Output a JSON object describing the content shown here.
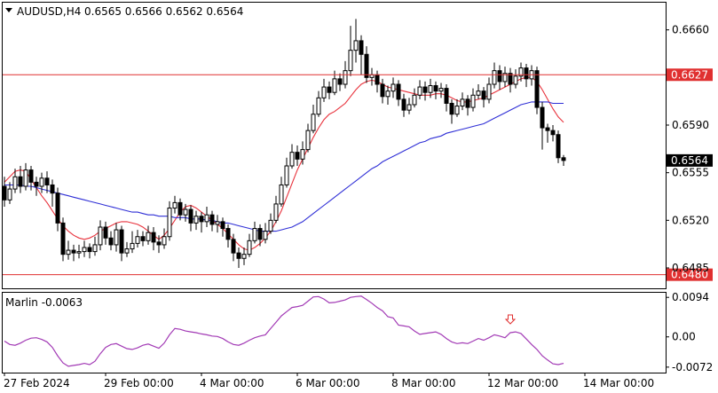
{
  "header": {
    "symbol_timeframe": "AUDUSD,H4",
    "ohlc": "0.6565 0.6566 0.6562 0.6564"
  },
  "colors": {
    "bull_candle": "#ffffff",
    "bear_candle": "#000000",
    "fast_ma": "#e8323c",
    "slow_ma": "#2f2fd6",
    "horizontal_level": "#e03030",
    "current_price_box": "#000000",
    "marlin_line": "#a23ab5",
    "signal_arrow": "#e03030"
  },
  "chart_data": [
    {
      "type": "candlestick",
      "symbol": "AUDUSD",
      "timeframe": "H4",
      "ylim": [
        0.647,
        0.668
      ],
      "price_ticks": [
        "0.6660",
        "0.6590",
        "0.6555",
        "0.6520",
        "0.6485"
      ],
      "x_labels": [
        "27 Feb 2024",
        "29 Feb 00:00",
        "4 Mar 00:00",
        "6 Mar 00:00",
        "8 Mar 00:00",
        "12 Mar 00:00",
        "14 Mar 00:00"
      ],
      "x_label_bar_index": [
        0,
        19,
        37,
        55,
        73,
        91,
        109
      ],
      "horizontal_levels": [
        "0.6627",
        "0.6480"
      ],
      "current_price": "0.6564",
      "candles": [
        [
          0.6545,
          0.6535,
          0.6552,
          0.653
        ],
        [
          0.6535,
          0.6543,
          0.6548,
          0.6532
        ],
        [
          0.6543,
          0.6552,
          0.6558,
          0.654
        ],
        [
          0.6552,
          0.6545,
          0.656,
          0.654
        ],
        [
          0.6545,
          0.6557,
          0.6562,
          0.6542
        ],
        [
          0.6557,
          0.6548,
          0.656,
          0.6542
        ],
        [
          0.6548,
          0.6545,
          0.6552,
          0.6538
        ],
        [
          0.6545,
          0.6551,
          0.6555,
          0.654
        ],
        [
          0.6551,
          0.6546,
          0.6556,
          0.654
        ],
        [
          0.6546,
          0.654,
          0.655,
          0.653
        ],
        [
          0.654,
          0.6518,
          0.6544,
          0.6512
        ],
        [
          0.6518,
          0.6495,
          0.6522,
          0.649
        ],
        [
          0.6495,
          0.6498,
          0.6505,
          0.6491
        ],
        [
          0.6498,
          0.6496,
          0.6502,
          0.649
        ],
        [
          0.6496,
          0.6497,
          0.6502,
          0.6492
        ],
        [
          0.6497,
          0.65,
          0.6505,
          0.6493
        ],
        [
          0.65,
          0.6497,
          0.6503,
          0.6492
        ],
        [
          0.6497,
          0.6502,
          0.6508,
          0.6494
        ],
        [
          0.6502,
          0.6515,
          0.652,
          0.6498
        ],
        [
          0.6515,
          0.6507,
          0.6519,
          0.6502
        ],
        [
          0.6507,
          0.6502,
          0.6512,
          0.6498
        ],
        [
          0.6502,
          0.6513,
          0.6518,
          0.6497
        ],
        [
          0.6513,
          0.6496,
          0.6516,
          0.649
        ],
        [
          0.6496,
          0.6499,
          0.6504,
          0.6493
        ],
        [
          0.6499,
          0.6503,
          0.6512,
          0.6496
        ],
        [
          0.6503,
          0.6508,
          0.6513,
          0.65
        ],
        [
          0.6508,
          0.6505,
          0.6512,
          0.6501
        ],
        [
          0.6505,
          0.6511,
          0.6516,
          0.6502
        ],
        [
          0.6511,
          0.6504,
          0.6515,
          0.6498
        ],
        [
          0.6504,
          0.6502,
          0.6509,
          0.6496
        ],
        [
          0.6502,
          0.6508,
          0.6514,
          0.6499
        ],
        [
          0.6508,
          0.6529,
          0.6534,
          0.6505
        ],
        [
          0.6529,
          0.6533,
          0.6538,
          0.6525
        ],
        [
          0.6533,
          0.6524,
          0.6536,
          0.652
        ],
        [
          0.6524,
          0.6528,
          0.6532,
          0.6519
        ],
        [
          0.6528,
          0.6518,
          0.6531,
          0.6512
        ],
        [
          0.6518,
          0.6523,
          0.6527,
          0.6513
        ],
        [
          0.6523,
          0.6519,
          0.6526,
          0.6511
        ],
        [
          0.6519,
          0.6524,
          0.653,
          0.6515
        ],
        [
          0.6524,
          0.6517,
          0.6527,
          0.6512
        ],
        [
          0.6517,
          0.6519,
          0.6524,
          0.6511
        ],
        [
          0.6519,
          0.6514,
          0.6522,
          0.6508
        ],
        [
          0.6514,
          0.6506,
          0.6517,
          0.65
        ],
        [
          0.6506,
          0.6496,
          0.651,
          0.649
        ],
        [
          0.6496,
          0.6492,
          0.65,
          0.6485
        ],
        [
          0.6492,
          0.6495,
          0.65,
          0.6487
        ],
        [
          0.6495,
          0.6505,
          0.651,
          0.6493
        ],
        [
          0.6505,
          0.6514,
          0.6519,
          0.6503
        ],
        [
          0.6514,
          0.6506,
          0.6517,
          0.6501
        ],
        [
          0.6506,
          0.6512,
          0.6518,
          0.6503
        ],
        [
          0.6512,
          0.652,
          0.6525,
          0.651
        ],
        [
          0.652,
          0.6532,
          0.6538,
          0.6518
        ],
        [
          0.6532,
          0.6546,
          0.6552,
          0.653
        ],
        [
          0.6546,
          0.656,
          0.6566,
          0.6544
        ],
        [
          0.656,
          0.657,
          0.6576,
          0.6558
        ],
        [
          0.657,
          0.6565,
          0.6575,
          0.656
        ],
        [
          0.6565,
          0.6572,
          0.6578,
          0.6561
        ],
        [
          0.6572,
          0.6586,
          0.6591,
          0.657
        ],
        [
          0.6586,
          0.6598,
          0.6605,
          0.6584
        ],
        [
          0.6598,
          0.661,
          0.6615,
          0.6596
        ],
        [
          0.661,
          0.6618,
          0.6624,
          0.6607
        ],
        [
          0.6618,
          0.6614,
          0.6622,
          0.6609
        ],
        [
          0.6614,
          0.6624,
          0.663,
          0.6612
        ],
        [
          0.6624,
          0.662,
          0.6628,
          0.6615
        ],
        [
          0.662,
          0.663,
          0.6637,
          0.6617
        ],
        [
          0.663,
          0.6645,
          0.6663,
          0.6626
        ],
        [
          0.6645,
          0.6652,
          0.6668,
          0.6636
        ],
        [
          0.6652,
          0.6642,
          0.6656,
          0.6627
        ],
        [
          0.6642,
          0.6625,
          0.6648,
          0.6621
        ],
        [
          0.6625,
          0.6627,
          0.6632,
          0.6619
        ],
        [
          0.6627,
          0.662,
          0.663,
          0.6614
        ],
        [
          0.662,
          0.6611,
          0.6624,
          0.6606
        ],
        [
          0.6611,
          0.6615,
          0.6619,
          0.6605
        ],
        [
          0.6615,
          0.662,
          0.6625,
          0.661
        ],
        [
          0.662,
          0.6609,
          0.6623,
          0.6604
        ],
        [
          0.6609,
          0.6601,
          0.6613,
          0.6596
        ],
        [
          0.6601,
          0.6605,
          0.661,
          0.6598
        ],
        [
          0.6605,
          0.6612,
          0.6617,
          0.6603
        ],
        [
          0.6612,
          0.6618,
          0.6623,
          0.6609
        ],
        [
          0.6618,
          0.6614,
          0.6622,
          0.6608
        ],
        [
          0.6614,
          0.6619,
          0.6624,
          0.661
        ],
        [
          0.6619,
          0.6615,
          0.6622,
          0.6609
        ],
        [
          0.6615,
          0.6617,
          0.6621,
          0.661
        ],
        [
          0.6617,
          0.6606,
          0.662,
          0.66
        ],
        [
          0.6606,
          0.6598,
          0.6609,
          0.6591
        ],
        [
          0.6598,
          0.6604,
          0.6609,
          0.6596
        ],
        [
          0.6604,
          0.6609,
          0.6614,
          0.6601
        ],
        [
          0.6609,
          0.6603,
          0.6612,
          0.6597
        ],
        [
          0.6603,
          0.6612,
          0.6617,
          0.66
        ],
        [
          0.6612,
          0.6615,
          0.662,
          0.6609
        ],
        [
          0.6615,
          0.6609,
          0.6618,
          0.6603
        ],
        [
          0.6609,
          0.662,
          0.6625,
          0.6606
        ],
        [
          0.662,
          0.663,
          0.6636,
          0.6617
        ],
        [
          0.663,
          0.6622,
          0.6634,
          0.6616
        ],
        [
          0.6622,
          0.6628,
          0.6633,
          0.6618
        ],
        [
          0.6628,
          0.662,
          0.6632,
          0.6614
        ],
        [
          0.662,
          0.6626,
          0.6631,
          0.6617
        ],
        [
          0.6626,
          0.6632,
          0.6636,
          0.6622
        ],
        [
          0.6632,
          0.6624,
          0.6635,
          0.6618
        ],
        [
          0.6624,
          0.663,
          0.6634,
          0.6619
        ],
        [
          0.663,
          0.6603,
          0.6633,
          0.6598
        ],
        [
          0.6603,
          0.6588,
          0.6607,
          0.6572
        ],
        [
          0.6588,
          0.6586,
          0.6591,
          0.6577
        ],
        [
          0.6586,
          0.6583,
          0.659,
          0.6578
        ],
        [
          0.6583,
          0.6566,
          0.6586,
          0.6562
        ],
        [
          0.6566,
          0.6564,
          0.6568,
          0.656
        ]
      ],
      "moving_averages": [
        {
          "values": [
            0.6548,
            0.6552,
            0.6556,
            0.6557,
            0.6556,
            0.655,
            0.6544,
            0.6538,
            0.6533,
            0.6527,
            0.6521,
            0.6516,
            0.6512,
            0.6509,
            0.6507,
            0.6506,
            0.6507,
            0.6509,
            0.6512,
            0.6514,
            0.6516,
            0.6518,
            0.6519,
            0.6519,
            0.6518,
            0.6517,
            0.6515,
            0.6512,
            0.6509,
            0.6506,
            0.6509,
            0.6514,
            0.652,
            0.6526,
            0.653,
            0.6531,
            0.6529,
            0.6526,
            0.6523,
            0.652,
            0.6517,
            0.6514,
            0.651,
            0.6506,
            0.6502,
            0.6499,
            0.6498,
            0.65,
            0.6503,
            0.6507,
            0.6512,
            0.6519,
            0.6527,
            0.6537,
            0.6547,
            0.6557,
            0.6565,
            0.6573,
            0.6581,
            0.6588,
            0.6594,
            0.6598,
            0.66,
            0.6603,
            0.6606,
            0.6611,
            0.6616,
            0.662,
            0.6622,
            0.6623,
            0.6622,
            0.662,
            0.6618,
            0.6617,
            0.6616,
            0.6615,
            0.6614,
            0.6613,
            0.6612,
            0.6612,
            0.6612,
            0.6613,
            0.6613,
            0.6612,
            0.661,
            0.6608,
            0.6607,
            0.6607,
            0.6608,
            0.6609,
            0.661,
            0.6612,
            0.6614,
            0.6616,
            0.6618,
            0.662,
            0.6622,
            0.6624,
            0.6625,
            0.6625,
            0.6622,
            0.6616,
            0.6609,
            0.6602,
            0.6596,
            0.6592
          ]
        },
        {
          "values": [
            0.6546,
            0.6546,
            0.6546,
            0.6546,
            0.6545,
            0.6545,
            0.6544,
            0.6543,
            0.6542,
            0.6541,
            0.654,
            0.6539,
            0.6538,
            0.6537,
            0.6536,
            0.6535,
            0.6534,
            0.6533,
            0.6532,
            0.6531,
            0.653,
            0.6529,
            0.6528,
            0.6527,
            0.6526,
            0.6526,
            0.6525,
            0.6524,
            0.6524,
            0.6523,
            0.6523,
            0.6523,
            0.6522,
            0.6522,
            0.6522,
            0.6521,
            0.6521,
            0.6521,
            0.652,
            0.652,
            0.6519,
            0.6518,
            0.6518,
            0.6517,
            0.6516,
            0.6515,
            0.6514,
            0.6513,
            0.6512,
            0.6512,
            0.6512,
            0.6512,
            0.6513,
            0.6514,
            0.6515,
            0.6517,
            0.6519,
            0.6522,
            0.6525,
            0.6528,
            0.6531,
            0.6534,
            0.6537,
            0.654,
            0.6543,
            0.6546,
            0.6549,
            0.6552,
            0.6555,
            0.6558,
            0.656,
            0.6563,
            0.6565,
            0.6567,
            0.6569,
            0.6571,
            0.6573,
            0.6575,
            0.6577,
            0.6578,
            0.658,
            0.6581,
            0.6582,
            0.6584,
            0.6585,
            0.6586,
            0.6587,
            0.6588,
            0.6589,
            0.659,
            0.6591,
            0.6593,
            0.6595,
            0.6597,
            0.6599,
            0.6601,
            0.6603,
            0.6605,
            0.6606,
            0.6607,
            0.6607,
            0.6607,
            0.6607,
            0.6606,
            0.6606,
            0.6606
          ]
        }
      ]
    },
    {
      "type": "line",
      "title": "Marlin -0.0063",
      "ylim": [
        -0.0085,
        0.0105
      ],
      "y_ticks": [
        "0.0094",
        "0.00",
        "-0.0072"
      ],
      "signal_arrow_bar_index": 95,
      "series": [
        {
          "values": [
            -0.001,
            -0.0018,
            -0.002,
            -0.0015,
            -0.0008,
            -0.0003,
            -0.0002,
            -0.0006,
            -0.0012,
            -0.0025,
            -0.0045,
            -0.0062,
            -0.007,
            -0.0068,
            -0.0066,
            -0.0063,
            -0.0066,
            -0.0058,
            -0.004,
            -0.0025,
            -0.0018,
            -0.0016,
            -0.0022,
            -0.0028,
            -0.003,
            -0.0026,
            -0.002,
            -0.0017,
            -0.0022,
            -0.0027,
            -0.0015,
            0.0005,
            0.002,
            0.0018,
            0.0014,
            0.0012,
            0.001,
            0.0007,
            0.0005,
            0.0002,
            0.0001,
            -0.0004,
            -0.0012,
            -0.0018,
            -0.002,
            -0.0015,
            -0.0008,
            -0.0002,
            0.0002,
            0.0005,
            0.002,
            0.0035,
            0.005,
            0.006,
            0.007,
            0.0072,
            0.0075,
            0.0085,
            0.0095,
            0.0096,
            0.009,
            0.0081,
            0.0082,
            0.0085,
            0.0088,
            0.0094,
            0.0096,
            0.0097,
            0.0089,
            0.008,
            0.007,
            0.0062,
            0.0048,
            0.0045,
            0.0028,
            0.0026,
            0.0024,
            0.0014,
            0.0006,
            0.0008,
            0.001,
            0.0012,
            0.0006,
            -0.0004,
            -0.0012,
            -0.0016,
            -0.0014,
            -0.0016,
            -0.001,
            -0.0004,
            -0.0008,
            -0.0002,
            0.0005,
            0.0002,
            -0.0002,
            0.001,
            0.0012,
            0.0008,
            -0.0005,
            -0.0018,
            -0.003,
            -0.0045,
            -0.0055,
            -0.0064,
            -0.0066,
            -0.0063
          ]
        }
      ]
    }
  ]
}
